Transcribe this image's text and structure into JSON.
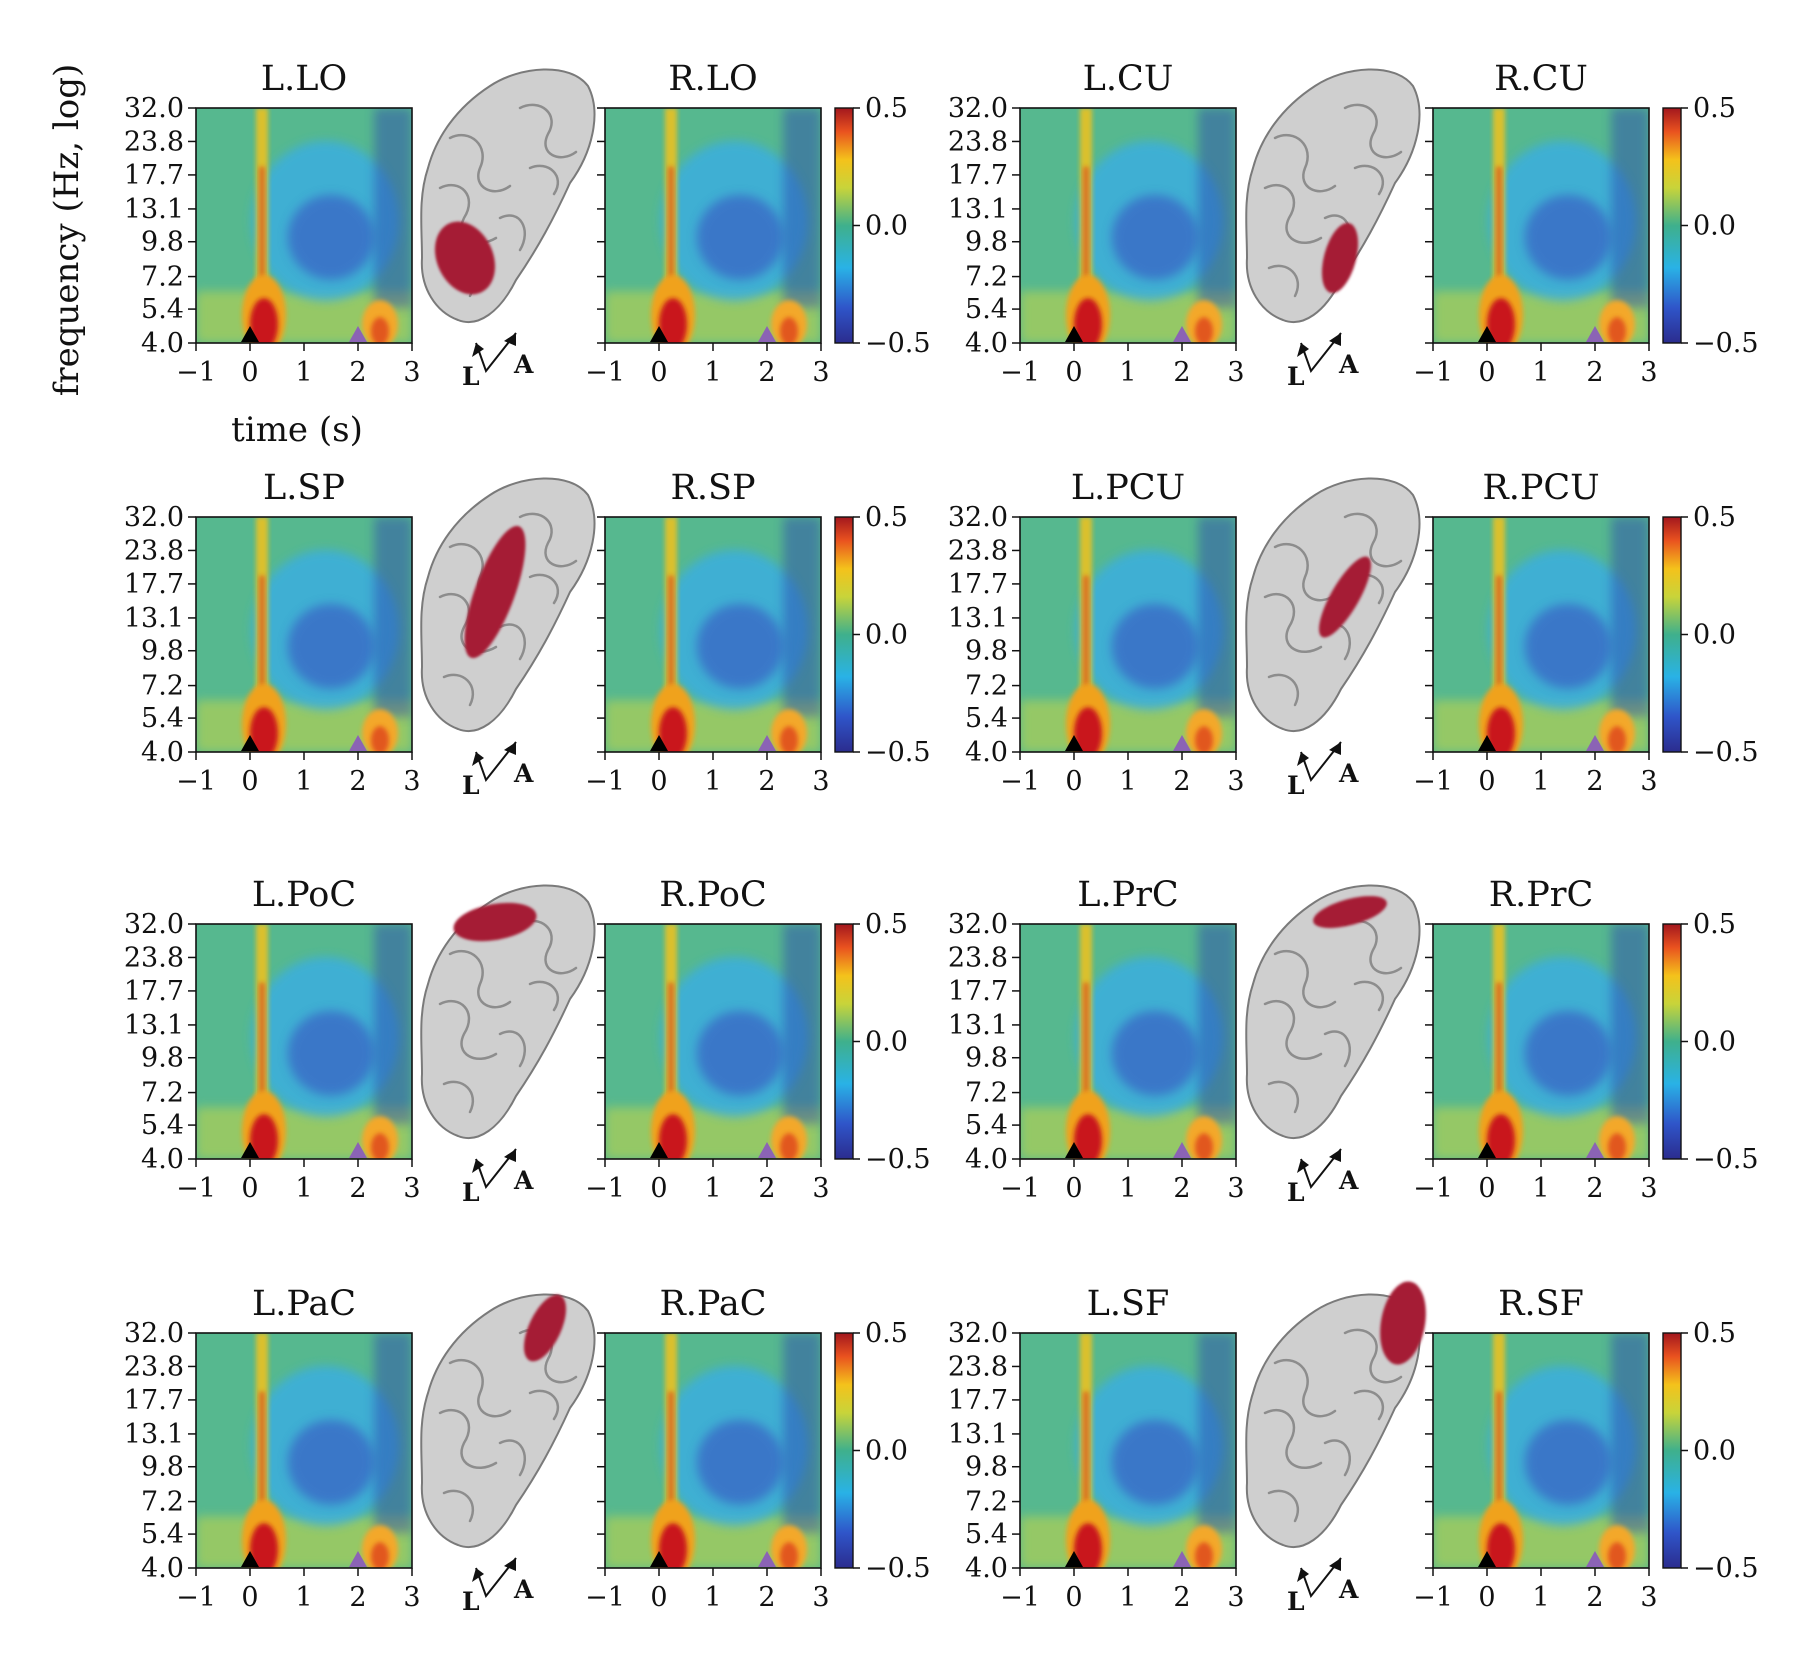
{
  "figure": {
    "ylabel": "frequency (Hz, log)",
    "xlabel": "time (s)",
    "orientation_labels": [
      "L",
      "A"
    ],
    "colorbar": {
      "ticks": [
        "0.5",
        "0.0",
        "−0.5"
      ],
      "range": [
        -0.5,
        0.5
      ]
    },
    "marker_colors": {
      "onset": "#000000",
      "second": "#8b63b5"
    },
    "brain_highlight_color": "#a51c36"
  },
  "chart_data": {
    "type": "heatmap",
    "x_ticks": [
      "−1",
      "0",
      "1",
      "2",
      "3"
    ],
    "xlim": [
      -1,
      3
    ],
    "y_ticks": [
      "32.0",
      "23.8",
      "17.7",
      "13.1",
      "9.8",
      "7.2",
      "5.4",
      "4.0"
    ],
    "ylim": [
      4.0,
      32.0
    ],
    "yscale": "log",
    "colormap": "jet",
    "value_range": [
      -0.5,
      0.5
    ],
    "event_markers": [
      {
        "time": 0,
        "color": "black"
      },
      {
        "time": 2,
        "color": "purple"
      }
    ],
    "panels": [
      {
        "title": "L.LO"
      },
      {
        "title": "R.LO"
      },
      {
        "title": "L.CU"
      },
      {
        "title": "R.CU"
      },
      {
        "title": "L.SP"
      },
      {
        "title": "R.SP"
      },
      {
        "title": "L.PCU"
      },
      {
        "title": "R.PCU"
      },
      {
        "title": "L.PoC"
      },
      {
        "title": "R.PoC"
      },
      {
        "title": "L.PrC"
      },
      {
        "title": "R.PrC"
      },
      {
        "title": "L.PaC"
      },
      {
        "title": "R.PaC"
      },
      {
        "title": "L.SF"
      },
      {
        "title": "R.SF"
      }
    ]
  }
}
